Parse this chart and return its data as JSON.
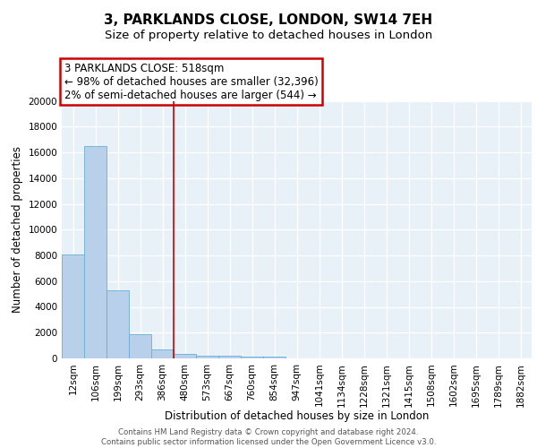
{
  "title1": "3, PARKLANDS CLOSE, LONDON, SW14 7EH",
  "title2": "Size of property relative to detached houses in London",
  "xlabel": "Distribution of detached houses by size in London",
  "ylabel": "Number of detached properties",
  "categories": [
    "12sqm",
    "106sqm",
    "199sqm",
    "293sqm",
    "386sqm",
    "480sqm",
    "573sqm",
    "667sqm",
    "760sqm",
    "854sqm",
    "947sqm",
    "1041sqm",
    "1134sqm",
    "1228sqm",
    "1321sqm",
    "1415sqm",
    "1508sqm",
    "1602sqm",
    "1695sqm",
    "1789sqm",
    "1882sqm"
  ],
  "values": [
    8100,
    16500,
    5300,
    1850,
    700,
    320,
    230,
    190,
    160,
    130,
    0,
    0,
    0,
    0,
    0,
    0,
    0,
    0,
    0,
    0,
    0
  ],
  "bar_color": "#b8d0ea",
  "bar_edge_color": "#6aaed6",
  "ann_line1": "3 PARKLANDS CLOSE: 518sqm",
  "ann_line2": "← 98% of detached houses are smaller (32,396)",
  "ann_line3": "2% of semi-detached houses are larger (544) →",
  "vline_x": 4.5,
  "ylim": [
    0,
    20000
  ],
  "yticks": [
    0,
    2000,
    4000,
    6000,
    8000,
    10000,
    12000,
    14000,
    16000,
    18000,
    20000
  ],
  "bg_color": "#e8f0f8",
  "footer_text": "Contains HM Land Registry data © Crown copyright and database right 2024.\nContains public sector information licensed under the Open Government Licence v3.0.",
  "title1_fontsize": 11,
  "title2_fontsize": 9.5,
  "xlabel_fontsize": 8.5,
  "ylabel_fontsize": 8.5,
  "ann_fontsize": 8.5,
  "tick_fontsize": 7.5
}
